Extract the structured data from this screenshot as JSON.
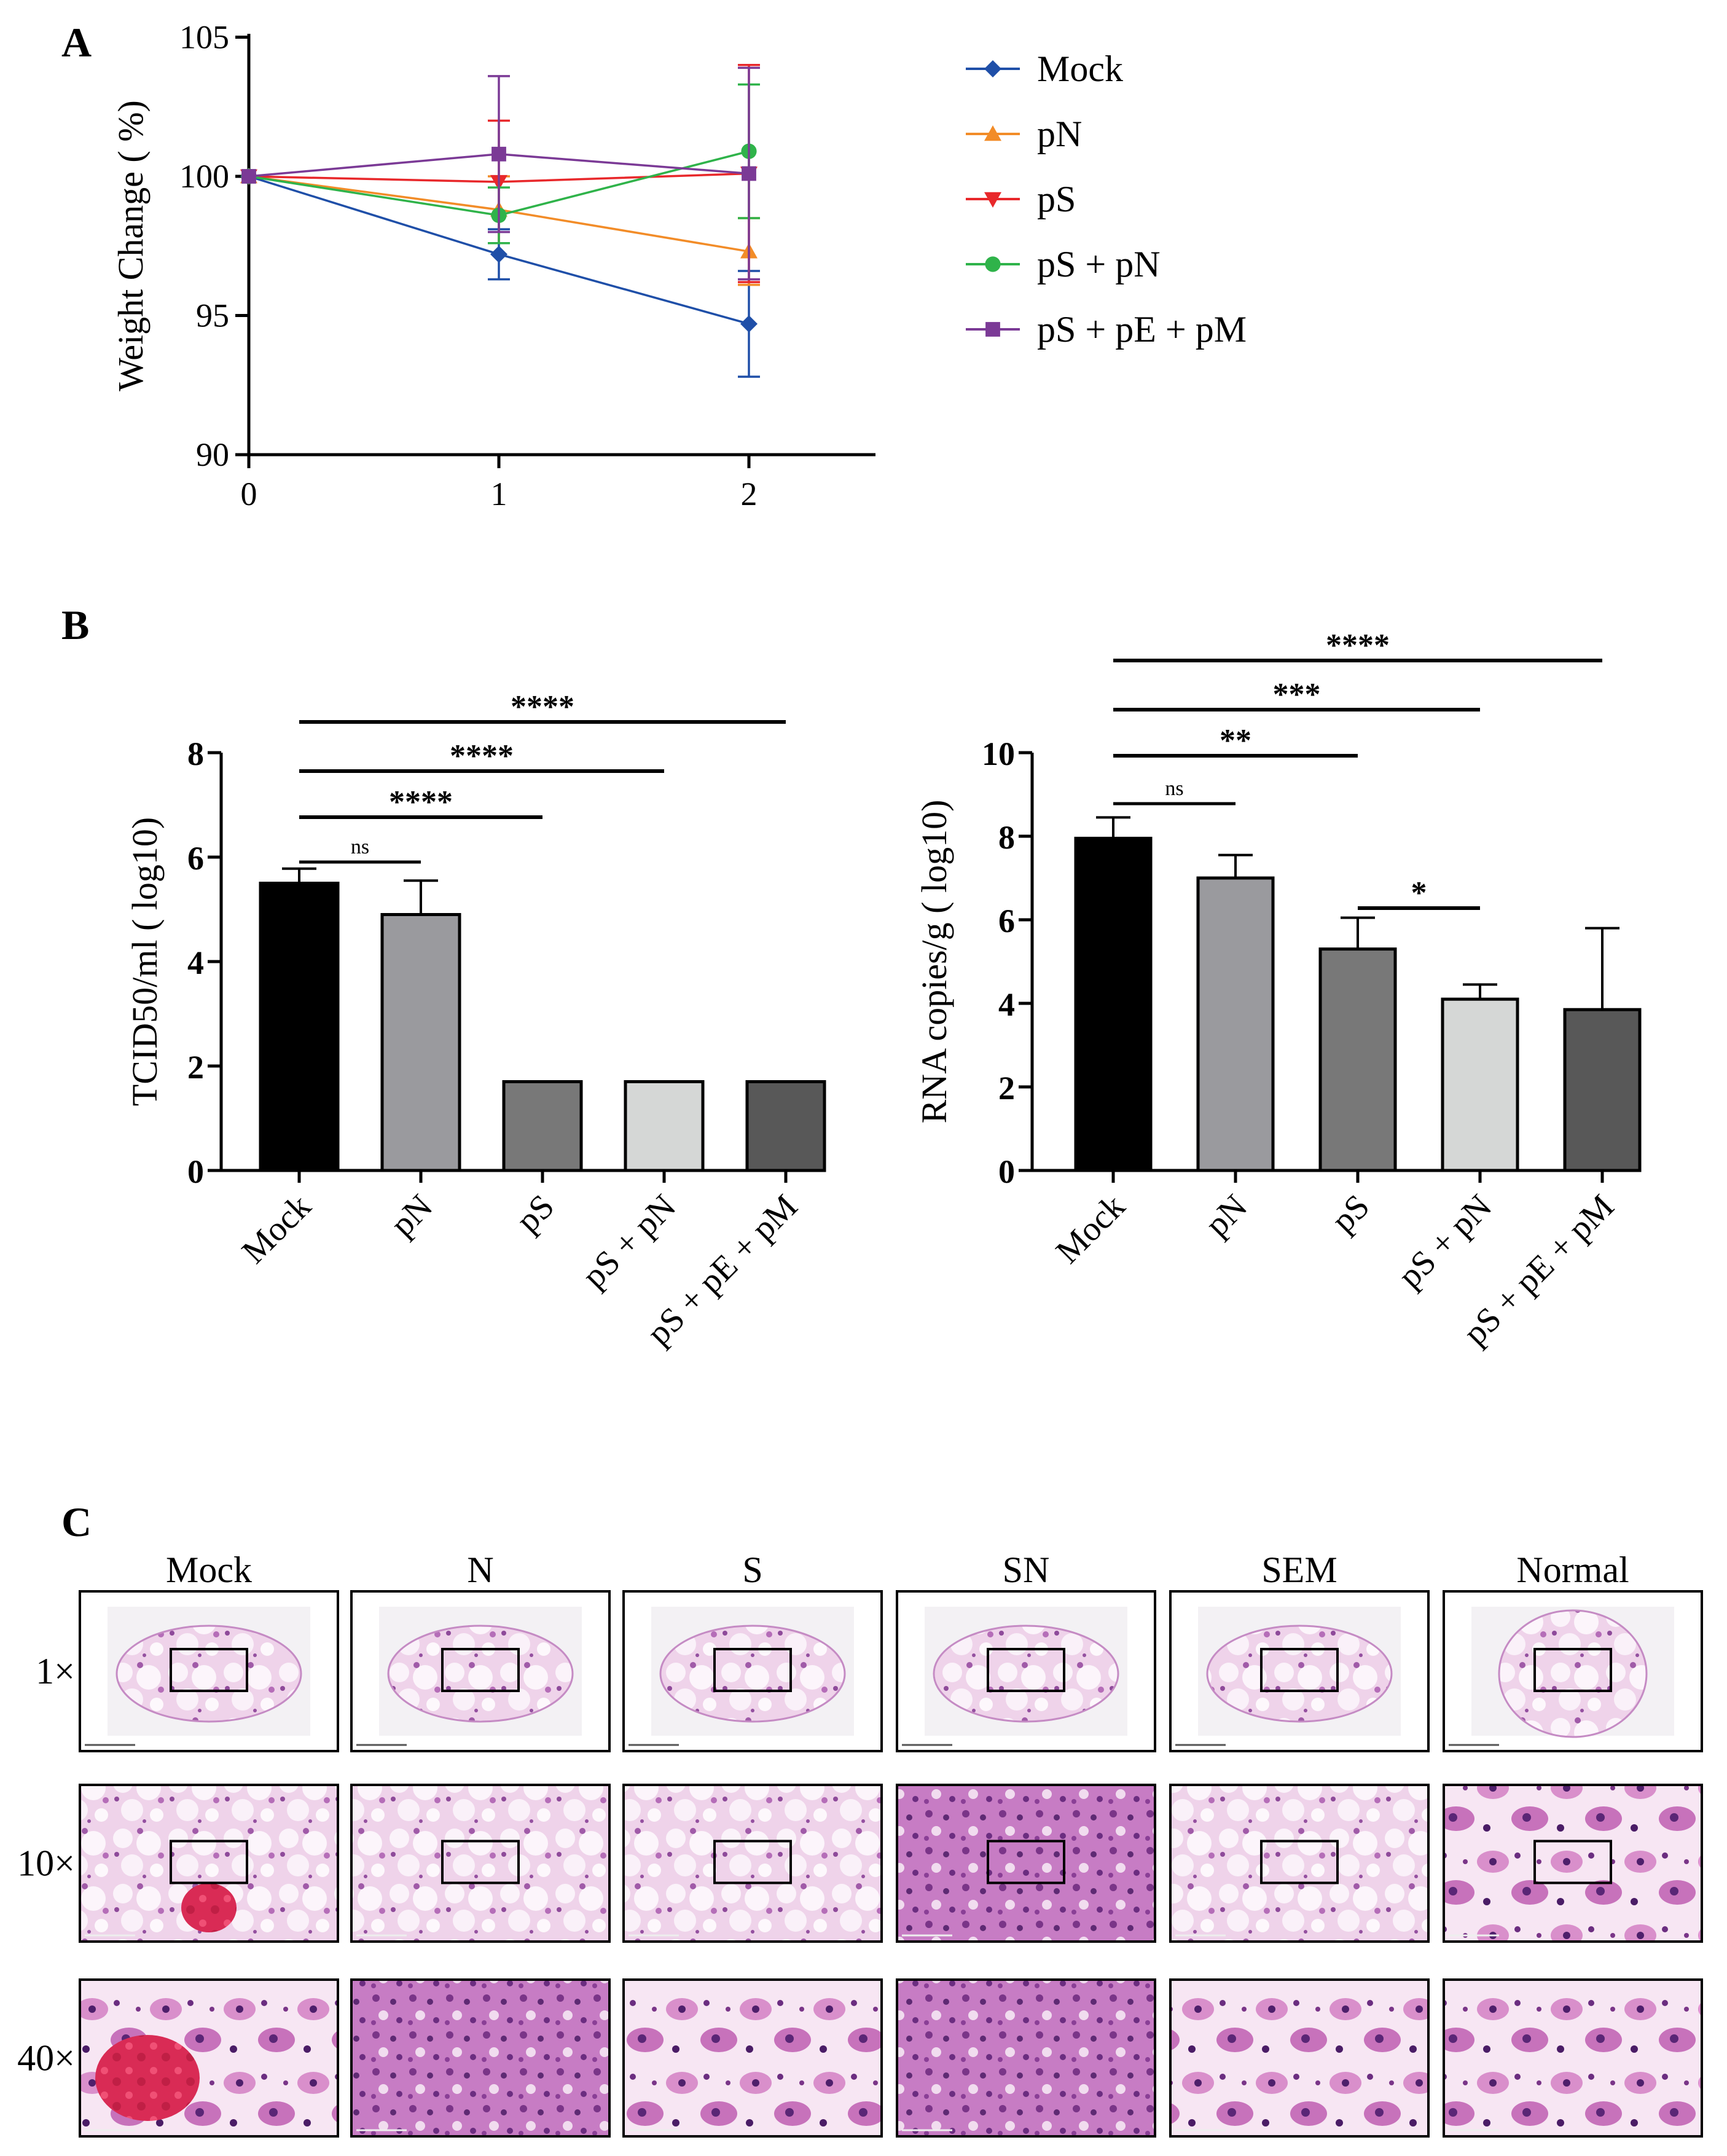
{
  "panels": {
    "a_label": "A",
    "b_label": "B",
    "c_label": "C"
  },
  "chart_data": [
    {
      "id": "A",
      "type": "line",
      "title": "",
      "xlabel": "",
      "ylabel": "Weight Change ( %)",
      "x": [
        0,
        1,
        2
      ],
      "xticks": [
        "0",
        "1",
        "2"
      ],
      "ylim": [
        90,
        105
      ],
      "yticks": [
        "90",
        "95",
        "100",
        "105"
      ],
      "legend_position": "right",
      "series": [
        {
          "name": "Mock",
          "color": "#1f4fa8",
          "marker": "diamond",
          "values": [
            100,
            97.2,
            94.7
          ],
          "errors": [
            0,
            0.9,
            1.9
          ]
        },
        {
          "name": "pN",
          "color": "#f28c28",
          "marker": "triangle-up",
          "values": [
            100,
            98.8,
            97.3
          ],
          "errors": [
            0,
            1.2,
            1.2
          ]
        },
        {
          "name": "pS",
          "color": "#e8282b",
          "marker": "triangle-down",
          "values": [
            100,
            99.8,
            100.1
          ],
          "errors": [
            0,
            2.2,
            3.9
          ]
        },
        {
          "name": "pS + pN",
          "color": "#2fb34a",
          "marker": "circle",
          "values": [
            100,
            98.6,
            100.9
          ],
          "errors": [
            0,
            1.0,
            2.4
          ]
        },
        {
          "name": "pS + pE + pM",
          "color": "#7b3a96",
          "marker": "square",
          "values": [
            100,
            100.8,
            100.1
          ],
          "errors": [
            0,
            2.8,
            3.8
          ]
        }
      ]
    },
    {
      "id": "B-left",
      "type": "bar",
      "title": "",
      "xlabel": "",
      "ylabel": "TCID50/ml ( log10)",
      "categories": [
        "Mock",
        "pN",
        "pS",
        "pS + pN",
        "pS + pE + pM"
      ],
      "values": [
        5.5,
        4.9,
        1.7,
        1.7,
        1.7
      ],
      "errors": [
        0.28,
        0.65,
        0,
        0,
        0
      ],
      "colors": [
        "#000000",
        "#9a9a9e",
        "#787878",
        "#d5d7d6",
        "#585858"
      ],
      "ylim": [
        0,
        8
      ],
      "yticks": [
        "0",
        "2",
        "4",
        "6",
        "8"
      ],
      "significance": [
        {
          "from": 0,
          "to": 1,
          "label": "ns"
        },
        {
          "from": 0,
          "to": 2,
          "label": "****"
        },
        {
          "from": 0,
          "to": 3,
          "label": "****"
        },
        {
          "from": 0,
          "to": 4,
          "label": "****"
        }
      ]
    },
    {
      "id": "B-right",
      "type": "bar",
      "title": "",
      "xlabel": "",
      "ylabel": "RNA copies/g ( log10)",
      "categories": [
        "Mock",
        "pN",
        "pS",
        "pS + pN",
        "pS + pE + pM"
      ],
      "values": [
        7.95,
        7.0,
        5.3,
        4.1,
        3.85
      ],
      "errors": [
        0.5,
        0.55,
        0.75,
        0.35,
        1.95
      ],
      "colors": [
        "#000000",
        "#9a9a9e",
        "#787878",
        "#d5d7d6",
        "#585858"
      ],
      "ylim": [
        0,
        10
      ],
      "yticks": [
        "0",
        "2",
        "4",
        "6",
        "8",
        "10"
      ],
      "significance": [
        {
          "from": 0,
          "to": 1,
          "label": "ns"
        },
        {
          "from": 0,
          "to": 2,
          "label": "**"
        },
        {
          "from": 0,
          "to": 3,
          "label": "***"
        },
        {
          "from": 0,
          "to": 4,
          "label": "****"
        },
        {
          "from": 2,
          "to": 3,
          "label": "*"
        }
      ]
    }
  ],
  "histology": {
    "columns": [
      "Mock",
      "N",
      "S",
      "SN",
      "SEM",
      "Normal"
    ],
    "rows": [
      "1×",
      "10×",
      "40×"
    ]
  }
}
